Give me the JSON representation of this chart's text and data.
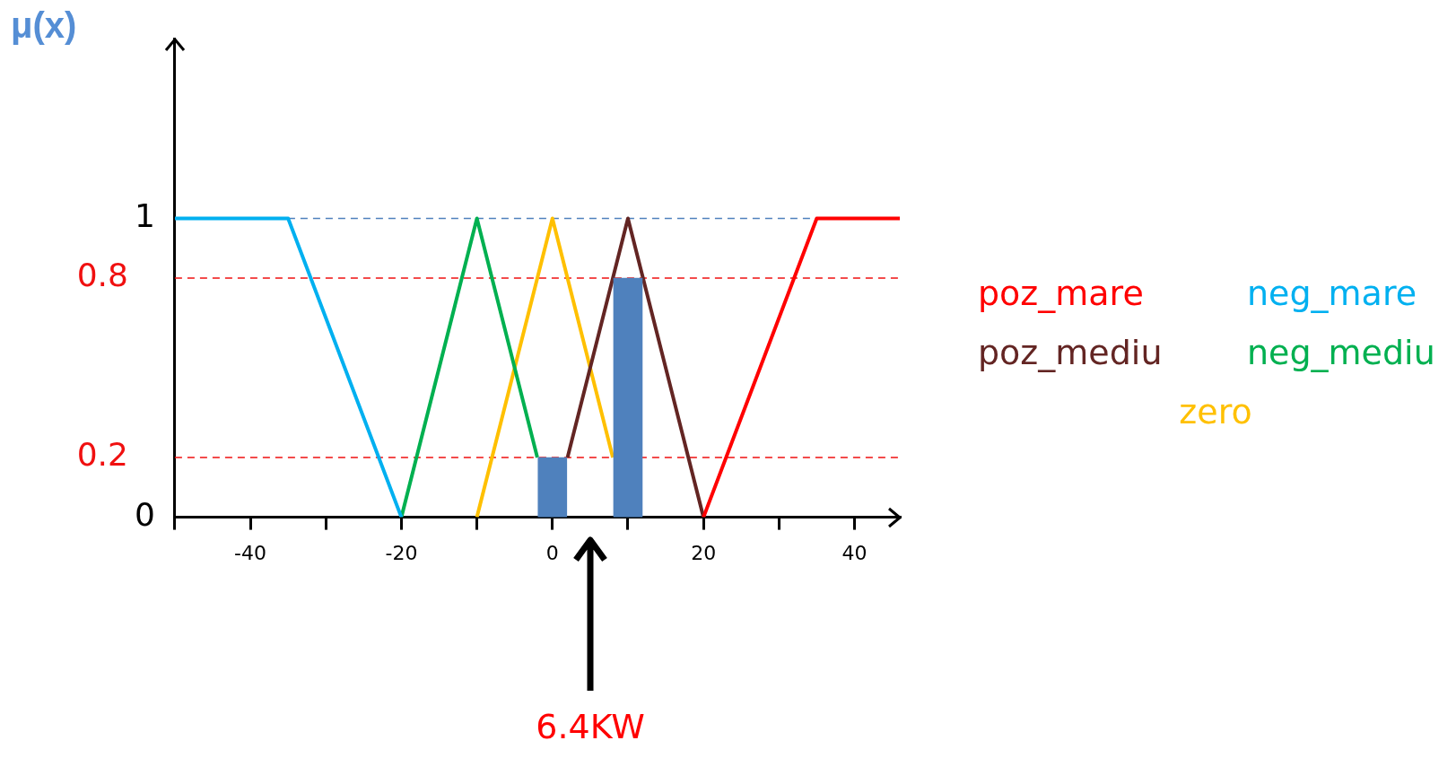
{
  "chart_data": {
    "type": "line",
    "ylabel": "μ(x)",
    "xlim": [
      -50,
      46
    ],
    "ylim": [
      0,
      1.6
    ],
    "xticks": [
      {
        "value": -50,
        "label": null
      },
      -40,
      {
        "value": -30,
        "label": null
      },
      -20,
      {
        "value": -10,
        "label": null
      },
      0,
      {
        "value": 10,
        "label": null
      },
      20,
      {
        "value": 30,
        "label": null
      },
      40
    ],
    "yticks": [
      0,
      1
    ],
    "series": [
      {
        "name": "poz_mare",
        "color": "#ff0000",
        "x": [
          20,
          35,
          46
        ],
        "values": [
          0,
          1,
          1
        ]
      },
      {
        "name": "neg_mare",
        "color": "#00b0f0",
        "x": [
          -50,
          -35,
          -20
        ],
        "values": [
          1,
          1,
          0
        ]
      },
      {
        "name": "poz_mediu",
        "color": "#632523",
        "x": [
          2,
          10,
          20
        ],
        "values": [
          0.2,
          1,
          0
        ]
      },
      {
        "name": "neg_mediu",
        "color": "#00b050",
        "x": [
          -20,
          -10,
          -2
        ],
        "values": [
          0,
          1,
          0.2
        ]
      },
      {
        "name": "zero",
        "color": "#ffc000",
        "x": [
          -10,
          0,
          8
        ],
        "values": [
          0,
          1,
          0.2
        ]
      },
      {
        "type": "bar",
        "color": "#4f81bd",
        "x": [
          0,
          10
        ],
        "values": [
          0.2,
          0.8
        ]
      }
    ],
    "ref_lines": [
      {
        "axis": "y",
        "value": 1,
        "label": null,
        "color": "#4f81bd",
        "line_style": "dashed"
      },
      {
        "axis": "y",
        "value": 0.8,
        "label": "0.8",
        "color": "#f01010",
        "line_style": "dashed"
      },
      {
        "axis": "y",
        "value": 0.2,
        "label": "0.2",
        "color": "#f01010",
        "line_style": "dashed"
      }
    ],
    "annotations": [
      "6.4KW"
    ],
    "grid": false,
    "legend": "right",
    "marker": "none",
    "line_style": "solid"
  }
}
